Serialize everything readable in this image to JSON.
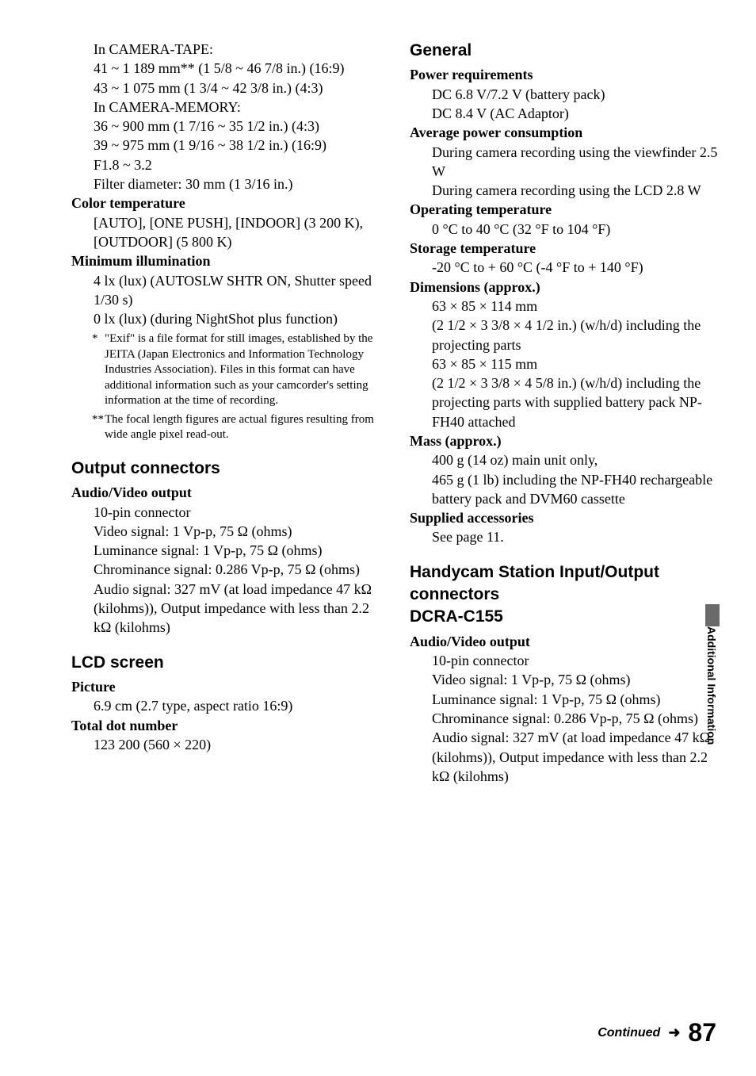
{
  "left": {
    "camera_tape_lines": [
      "In CAMERA-TAPE:",
      "41 ~ 1 189 mm** (1 5/8 ~ 46 7/8 in.) (16:9)",
      "43 ~ 1 075 mm (1 3/4 ~ 42 3/8 in.) (4:3)",
      "In CAMERA-MEMORY:",
      "36 ~ 900 mm (1 7/16 ~ 35 1/2 in.) (4:3)",
      "39 ~ 975 mm (1 9/16 ~ 38 1/2 in.) (16:9)",
      "F1.8 ~ 3.2",
      "Filter diameter: 30 mm (1 3/16 in.)"
    ],
    "color_temp_label": "Color temperature",
    "color_temp_lines": [
      "[AUTO], [ONE PUSH], [INDOOR] (3 200 K), [OUTDOOR] (5 800 K)"
    ],
    "min_illum_label": "Minimum illumination",
    "min_illum_lines": [
      "4 lx (lux) (AUTOSLW SHTR ON, Shutter speed 1/30 s)",
      "0 lx (lux) (during NightShot plus function)"
    ],
    "footnote1": "\"Exif\" is a file format for still images, established by the JEITA (Japan Electronics and Information Technology Industries Association). Files in this format can have additional information such as your camcorder's setting information at the time of recording.",
    "footnote2": "The focal length figures are actual figures resulting from wide angle pixel read-out.",
    "output_head": "Output connectors",
    "av_output_label": "Audio/Video output",
    "av_output_lines": [
      "10-pin connector",
      "Video signal: 1 Vp-p, 75 Ω (ohms)",
      "Luminance signal: 1 Vp-p, 75 Ω (ohms)",
      "Chrominance signal: 0.286 Vp-p, 75 Ω (ohms)",
      "Audio signal: 327 mV (at load impedance 47 kΩ (kilohms)), Output impedance with less than 2.2 kΩ (kilohms)"
    ],
    "lcd_head": "LCD screen",
    "picture_label": "Picture",
    "picture_value": "6.9 cm (2.7 type, aspect ratio 16:9)",
    "total_dot_label": "Total dot number",
    "total_dot_value": "123 200 (560 × 220)"
  },
  "right": {
    "general_head": "General",
    "power_req_label": "Power requirements",
    "power_req_lines": [
      "DC 6.8 V/7.2 V (battery pack)",
      "DC 8.4 V (AC Adaptor)"
    ],
    "avg_power_label": "Average power consumption",
    "avg_power_lines": [
      "During camera recording using the viewfinder 2.5 W",
      "During camera recording using the LCD 2.8 W"
    ],
    "op_temp_label": "Operating temperature",
    "op_temp_value": "0 °C to 40 °C (32 °F to 104 °F)",
    "storage_temp_label": "Storage temperature",
    "storage_temp_value": "-20 °C to + 60 °C (-4 °F to + 140 °F)",
    "dimensions_label": "Dimensions (approx.)",
    "dimensions_lines": [
      "63 × 85 × 114 mm",
      "(2 1/2 × 3 3/8 × 4 1/2 in.) (w/h/d) including the projecting parts",
      "63 × 85 × 115 mm",
      "(2 1/2 × 3 3/8 × 4 5/8 in.) (w/h/d) including the projecting parts with supplied battery pack NP-FH40 attached"
    ],
    "mass_label": "Mass (approx.)",
    "mass_lines": [
      "400 g (14 oz) main unit only,",
      "465 g (1 lb) including the NP-FH40 rechargeable battery pack and DVM60 cassette"
    ],
    "supplied_label": "Supplied accessories",
    "supplied_value": "See page 11.",
    "handycam_head": "Handycam Station Input/Output connectors\nDCRA-C155",
    "handycam_av_label": "Audio/Video output",
    "handycam_av_lines": [
      "10-pin connector",
      "Video signal: 1 Vp-p, 75 Ω (ohms)",
      "Luminance signal: 1 Vp-p, 75 Ω (ohms)",
      "Chrominance signal: 0.286 Vp-p, 75 Ω (ohms)",
      "Audio signal: 327 mV (at load impedance 47 kΩ (kilohms)), Output impedance with less than 2.2 kΩ (kilohms)"
    ]
  },
  "side_tab": "Additional Information",
  "continued": "Continued",
  "page_num": "87"
}
